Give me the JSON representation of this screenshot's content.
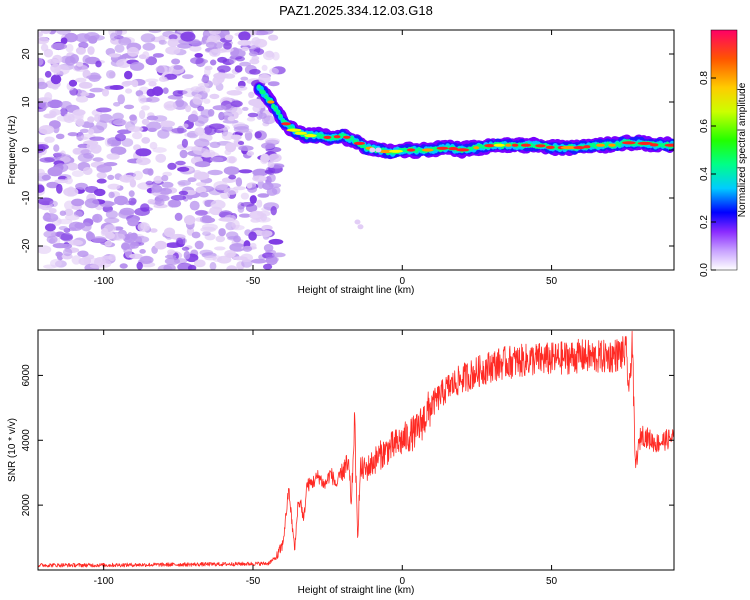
{
  "colors": {
    "trace": "#ff2a24",
    "frame": "#000000",
    "background": "#ffffff",
    "scatter_light": "#e2cdf6",
    "scatter_mid": "#b994ee",
    "scatter_dark": "#7d38e3"
  },
  "chart_data": [
    {
      "type": "heatmap",
      "title": "PAZ1.2025.334.12.03.G18",
      "xlabel": "Height of straight line (km)",
      "ylabel": "Frequency (Hz)",
      "xlim": [
        -122,
        91
      ],
      "ylim": [
        -25,
        25
      ],
      "xticks": [
        -100,
        -50,
        0,
        50
      ],
      "xtick_labels": [
        "-100",
        "-50",
        "0",
        "50"
      ],
      "yticks": [
        -20,
        -10,
        0,
        10,
        20
      ],
      "ytick_labels": [
        "-20",
        "-10",
        "0",
        "10",
        "20"
      ],
      "colorbar": {
        "label": "Normalized spectral amplitude",
        "range": [
          0,
          1
        ],
        "ticks": [
          0,
          0.2,
          0.4,
          0.6,
          0.8
        ],
        "tick_labels": [
          "0.0",
          "0.2",
          "0.4",
          "0.6",
          "0.8"
        ]
      },
      "noise_region_x": [
        -122,
        -44
      ],
      "ridge": {
        "x": [
          -48,
          -44,
          -40,
          -36,
          -32,
          -28,
          -24,
          -20,
          -16,
          -12,
          -8,
          -4,
          0,
          5,
          10,
          15,
          20,
          25,
          30,
          35,
          40,
          45,
          50,
          55,
          60,
          65,
          70,
          75,
          80,
          85,
          91
        ],
        "freq": [
          13,
          10,
          6,
          4,
          3,
          3,
          2.5,
          3,
          2,
          0.5,
          0,
          -0.5,
          0,
          0,
          0,
          0.5,
          0,
          0.5,
          1,
          1,
          1,
          1,
          0.5,
          0.5,
          0.5,
          1,
          1,
          1.5,
          1.5,
          1,
          1
        ]
      }
    },
    {
      "type": "line",
      "title": "",
      "xlabel": "Height of straight line (km)",
      "ylabel": "SNR (10 * v/v)",
      "xlim": [
        -122,
        91
      ],
      "ylim": [
        0,
        7400
      ],
      "xticks": [
        -100,
        -50,
        0,
        50
      ],
      "xtick_labels": [
        "-100",
        "-50",
        "0",
        "50"
      ],
      "yticks": [
        2000,
        4000,
        6000
      ],
      "ytick_labels": [
        "2000",
        "4000",
        "6000"
      ],
      "series": [
        {
          "name": "SNR",
          "x": [
            -122,
            -100,
            -60,
            -45,
            -42,
            -40,
            -38,
            -37,
            -36,
            -35,
            -34,
            -33,
            -32,
            -30,
            -28,
            -26,
            -24,
            -22,
            -20,
            -18,
            -17,
            -16,
            -15,
            -14,
            -12,
            -10,
            -8,
            -5,
            0,
            5,
            10,
            15,
            20,
            25,
            30,
            35,
            40,
            45,
            50,
            55,
            60,
            65,
            70,
            75,
            76,
            77,
            78,
            80,
            85,
            91
          ],
          "y": [
            150,
            150,
            180,
            200,
            400,
            800,
            2500,
            1500,
            600,
            2000,
            2100,
            1500,
            2600,
            2700,
            2900,
            2600,
            3000,
            2600,
            3100,
            3200,
            2000,
            4700,
            1000,
            3100,
            3100,
            3300,
            3500,
            3700,
            4000,
            4300,
            5100,
            5600,
            5900,
            6100,
            6300,
            6400,
            6450,
            6500,
            6500,
            6550,
            6600,
            6550,
            6600,
            6700,
            5400,
            7200,
            3200,
            4200,
            3900,
            4100
          ]
        }
      ]
    }
  ]
}
